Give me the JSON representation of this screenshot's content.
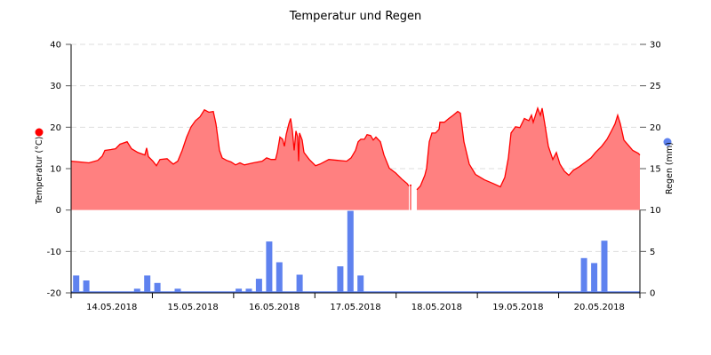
{
  "chart_data": {
    "type": "area+bar",
    "title": "Temperatur und Regen",
    "x_tick_labels": [
      "14.05.2018",
      "15.05.2018",
      "16.05.2018",
      "17.05.2018",
      "18.05.2018",
      "19.05.2018",
      "20.05.2018"
    ],
    "x_range": [
      "2018-05-14T00:00",
      "2018-05-21T00:00"
    ],
    "grid": true,
    "y_left": {
      "label": "Temperatur (°C)",
      "range": [
        -20,
        40
      ],
      "ticks": [
        40,
        30,
        20,
        10,
        0,
        -10,
        -20
      ]
    },
    "y_right": {
      "label": "Regen (mm)",
      "range": [
        0,
        30
      ],
      "ticks": [
        30,
        25,
        20,
        15,
        10,
        5,
        0
      ]
    },
    "series": [
      {
        "name": "Temperatur (°C)",
        "type": "area",
        "axis": "left",
        "color": "#ff0000",
        "fill": "#ff8080",
        "points": [
          [
            "2018-05-14T00:00",
            11.8
          ],
          [
            "2018-05-14T02:36",
            11.6
          ],
          [
            "2018-05-14T05:15",
            11.4
          ],
          [
            "2018-05-14T07:52",
            12.0
          ],
          [
            "2018-05-14T09:11",
            13.0
          ],
          [
            "2018-05-14T09:58",
            14.4
          ],
          [
            "2018-05-14T11:49",
            14.6
          ],
          [
            "2018-05-14T13:07",
            14.8
          ],
          [
            "2018-05-14T14:26",
            15.9
          ],
          [
            "2018-05-14T16:32",
            16.5
          ],
          [
            "2018-05-14T17:51",
            14.8
          ],
          [
            "2018-05-14T19:41",
            13.9
          ],
          [
            "2018-05-14T21:47",
            13.3
          ],
          [
            "2018-05-14T22:19",
            15.0
          ],
          [
            "2018-05-14T22:50",
            12.9
          ],
          [
            "2018-05-15T00:09",
            11.8
          ],
          [
            "2018-05-15T01:12",
            10.7
          ],
          [
            "2018-05-15T02:15",
            12.2
          ],
          [
            "2018-05-15T04:21",
            12.4
          ],
          [
            "2018-05-15T05:24",
            11.6
          ],
          [
            "2018-05-15T06:11",
            11.1
          ],
          [
            "2018-05-15T07:30",
            11.8
          ],
          [
            "2018-05-15T08:49",
            14.4
          ],
          [
            "2018-05-15T10:07",
            17.6
          ],
          [
            "2018-05-15T11:26",
            20.1
          ],
          [
            "2018-05-15T12:45",
            21.6
          ],
          [
            "2018-05-15T14:04",
            22.5
          ],
          [
            "2018-05-15T15:22",
            24.2
          ],
          [
            "2018-05-15T16:41",
            23.6
          ],
          [
            "2018-05-15T18:00",
            23.8
          ],
          [
            "2018-05-15T18:47",
            20.8
          ],
          [
            "2018-05-15T19:50",
            14.4
          ],
          [
            "2018-05-15T20:37",
            12.6
          ],
          [
            "2018-05-15T21:56",
            12.0
          ],
          [
            "2018-05-15T23:15",
            11.6
          ],
          [
            "2018-05-16T00:34",
            10.9
          ],
          [
            "2018-05-16T01:52",
            11.4
          ],
          [
            "2018-05-16T03:11",
            10.9
          ],
          [
            "2018-05-16T05:49",
            11.4
          ],
          [
            "2018-05-16T08:26",
            11.8
          ],
          [
            "2018-05-16T09:45",
            12.6
          ],
          [
            "2018-05-16T11:04",
            12.2
          ],
          [
            "2018-05-16T12:22",
            12.2
          ],
          [
            "2018-05-16T12:54",
            13.9
          ],
          [
            "2018-05-16T13:41",
            17.6
          ],
          [
            "2018-05-16T14:28",
            17.1
          ],
          [
            "2018-05-16T15:00",
            15.4
          ],
          [
            "2018-05-16T15:31",
            18.2
          ],
          [
            "2018-05-16T16:19",
            20.8
          ],
          [
            "2018-05-16T16:50",
            22.1
          ],
          [
            "2018-05-16T17:22",
            19.1
          ],
          [
            "2018-05-16T17:53",
            14.4
          ],
          [
            "2018-05-16T18:25",
            19.1
          ],
          [
            "2018-05-16T18:56",
            17.6
          ],
          [
            "2018-05-16T19:12",
            11.8
          ],
          [
            "2018-05-16T19:28",
            18.6
          ],
          [
            "2018-05-16T20:15",
            16.9
          ],
          [
            "2018-05-16T20:46",
            13.9
          ],
          [
            "2018-05-16T22:21",
            12.2
          ],
          [
            "2018-05-17T00:11",
            10.7
          ],
          [
            "2018-05-17T01:30",
            11.1
          ],
          [
            "2018-05-17T04:07",
            12.2
          ],
          [
            "2018-05-17T06:45",
            12.0
          ],
          [
            "2018-05-17T09:22",
            11.8
          ],
          [
            "2018-05-17T10:41",
            12.6
          ],
          [
            "2018-05-17T12:00",
            14.4
          ],
          [
            "2018-05-17T12:47",
            16.5
          ],
          [
            "2018-05-17T13:34",
            17.1
          ],
          [
            "2018-05-17T14:37",
            17.1
          ],
          [
            "2018-05-17T15:25",
            18.2
          ],
          [
            "2018-05-17T16:28",
            18.0
          ],
          [
            "2018-05-17T17:15",
            16.9
          ],
          [
            "2018-05-17T18:02",
            17.6
          ],
          [
            "2018-05-17T19:21",
            16.5
          ],
          [
            "2018-05-17T20:24",
            13.3
          ],
          [
            "2018-05-17T21:58",
            10.1
          ],
          [
            "2018-05-17T23:49",
            9.0
          ],
          [
            "2018-05-18T01:39",
            7.5
          ],
          [
            "2018-05-18T03:13",
            6.4
          ],
          [
            "2018-05-18T03:45",
            5.8
          ],
          [
            "2018-05-18T04:00",
            null
          ],
          [
            "2018-05-18T04:16",
            6.0
          ],
          [
            "2018-05-18T04:48",
            null
          ],
          [
            "2018-05-18T06:07",
            4.9
          ],
          [
            "2018-05-18T07:10",
            5.8
          ],
          [
            "2018-05-18T08:28",
            8.4
          ],
          [
            "2018-05-18T09:00",
            10.1
          ],
          [
            "2018-05-18T09:47",
            16.5
          ],
          [
            "2018-05-18T10:34",
            18.6
          ],
          [
            "2018-05-18T11:37",
            18.6
          ],
          [
            "2018-05-18T12:40",
            19.5
          ],
          [
            "2018-05-18T12:56",
            21.2
          ],
          [
            "2018-05-18T14:15",
            21.2
          ],
          [
            "2018-05-18T15:34",
            22.1
          ],
          [
            "2018-05-18T16:52",
            22.9
          ],
          [
            "2018-05-18T18:11",
            23.8
          ],
          [
            "2018-05-18T18:58",
            23.4
          ],
          [
            "2018-05-18T20:01",
            16.5
          ],
          [
            "2018-05-18T21:36",
            11.1
          ],
          [
            "2018-05-18T23:26",
            8.6
          ],
          [
            "2018-05-19T02:03",
            7.3
          ],
          [
            "2018-05-19T04:41",
            6.4
          ],
          [
            "2018-05-19T06:47",
            5.6
          ],
          [
            "2018-05-19T08:06",
            7.9
          ],
          [
            "2018-05-19T09:09",
            12.6
          ],
          [
            "2018-05-19T09:56",
            18.6
          ],
          [
            "2018-05-19T11:15",
            20.1
          ],
          [
            "2018-05-19T12:34",
            19.9
          ],
          [
            "2018-05-19T13:52",
            22.1
          ],
          [
            "2018-05-19T15:11",
            21.6
          ],
          [
            "2018-05-19T15:58",
            22.9
          ],
          [
            "2018-05-19T16:30",
            21.2
          ],
          [
            "2018-05-19T17:49",
            24.6
          ],
          [
            "2018-05-19T18:36",
            22.9
          ],
          [
            "2018-05-19T19:07",
            24.6
          ],
          [
            "2018-05-19T19:54",
            20.8
          ],
          [
            "2018-05-19T20:57",
            15.4
          ],
          [
            "2018-05-19T22:16",
            12.2
          ],
          [
            "2018-05-19T23:19",
            13.9
          ],
          [
            "2018-05-20T00:22",
            11.1
          ],
          [
            "2018-05-20T01:41",
            9.4
          ],
          [
            "2018-05-20T03:00",
            8.4
          ],
          [
            "2018-05-20T04:19",
            9.6
          ],
          [
            "2018-05-20T06:09",
            10.5
          ],
          [
            "2018-05-20T08:15",
            11.8
          ],
          [
            "2018-05-20T09:34",
            12.6
          ],
          [
            "2018-05-20T10:52",
            13.9
          ],
          [
            "2018-05-20T12:43",
            15.4
          ],
          [
            "2018-05-20T14:17",
            17.1
          ],
          [
            "2018-05-20T15:36",
            19.1
          ],
          [
            "2018-05-20T16:39",
            20.8
          ],
          [
            "2018-05-20T17:26",
            22.9
          ],
          [
            "2018-05-20T18:13",
            20.8
          ],
          [
            "2018-05-20T19:17",
            16.9
          ],
          [
            "2018-05-20T20:51",
            15.4
          ],
          [
            "2018-05-20T21:54",
            14.4
          ],
          [
            "2018-05-20T23:29",
            13.7
          ],
          [
            "2018-05-21T00:00",
            13.3
          ]
        ]
      },
      {
        "name": "Regen (mm)",
        "type": "bar",
        "axis": "right",
        "color": "#5f82ef",
        "bin_hours": 3,
        "points": [
          [
            "2018-05-14T00:00",
            2.1
          ],
          [
            "2018-05-14T03:00",
            1.5
          ],
          [
            "2018-05-14T18:00",
            0.5
          ],
          [
            "2018-05-14T21:00",
            2.1
          ],
          [
            "2018-05-15T00:00",
            1.2
          ],
          [
            "2018-05-15T06:00",
            0.5
          ],
          [
            "2018-05-16T00:00",
            0.5
          ],
          [
            "2018-05-16T03:00",
            0.5
          ],
          [
            "2018-05-16T06:00",
            1.7
          ],
          [
            "2018-05-16T09:00",
            6.2
          ],
          [
            "2018-05-16T12:00",
            3.7
          ],
          [
            "2018-05-16T18:00",
            2.2
          ],
          [
            "2018-05-17T06:00",
            3.2
          ],
          [
            "2018-05-17T09:00",
            9.9
          ],
          [
            "2018-05-17T12:00",
            2.1
          ],
          [
            "2018-05-20T06:00",
            4.2
          ],
          [
            "2018-05-20T09:00",
            3.6
          ],
          [
            "2018-05-20T12:00",
            6.3
          ]
        ]
      }
    ]
  }
}
